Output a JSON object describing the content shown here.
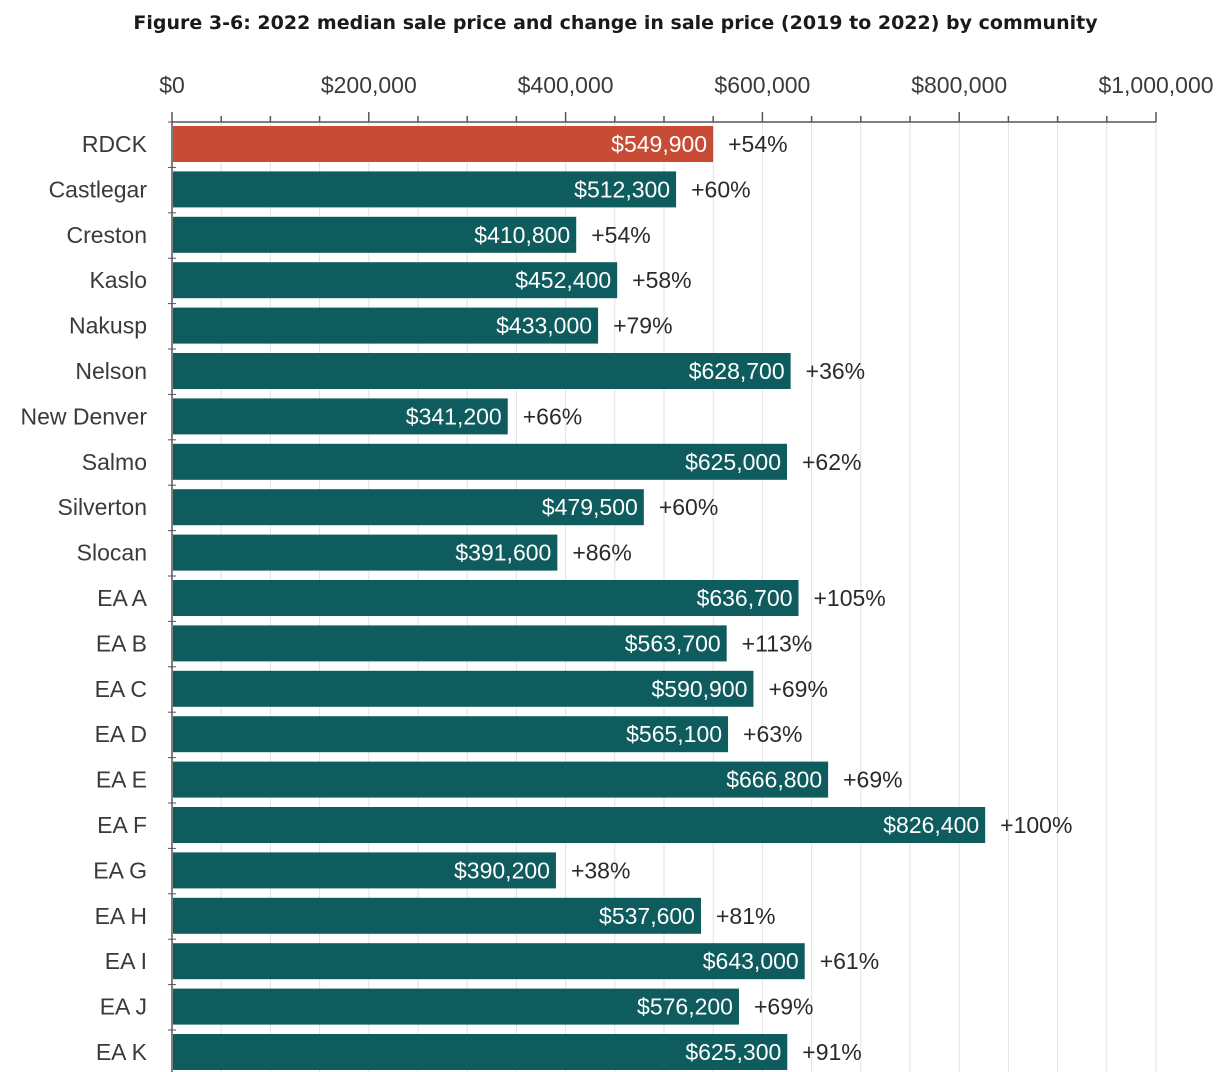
{
  "chart_data": {
    "type": "bar",
    "orientation": "horizontal",
    "title": "Figure 3-6: 2022 median sale price and change in sale price (2019 to 2022) by community",
    "xlim": [
      0,
      1000000
    ],
    "x_ticks": [
      "$0",
      "$200,000",
      "$400,000",
      "$600,000",
      "$800,000",
      "$1,000,000"
    ],
    "x_tick_values": [
      0,
      200000,
      400000,
      600000,
      800000,
      1000000
    ],
    "x_axis_position": "top",
    "grid": true,
    "categories": [
      "RDCK",
      "Castlegar",
      "Creston",
      "Kaslo",
      "Nakusp",
      "Nelson",
      "New Denver",
      "Salmo",
      "Silverton",
      "Slocan",
      "EA A",
      "EA B",
      "EA C",
      "EA D",
      "EA E",
      "EA F",
      "EA G",
      "EA H",
      "EA I",
      "EA J",
      "EA K"
    ],
    "values": [
      549900,
      512300,
      410800,
      452400,
      433000,
      628700,
      341200,
      625000,
      479500,
      391600,
      636700,
      563700,
      590900,
      565100,
      666800,
      826400,
      390200,
      537600,
      643000,
      576200,
      625300
    ],
    "value_labels": [
      "$549,900",
      "$512,300",
      "$410,800",
      "$452,400",
      "$433,000",
      "$628,700",
      "$341,200",
      "$625,000",
      "$479,500",
      "$391,600",
      "$636,700",
      "$563,700",
      "$590,900",
      "$565,100",
      "$666,800",
      "$826,400",
      "$390,200",
      "$537,600",
      "$643,000",
      "$576,200",
      "$625,300"
    ],
    "change_labels": [
      "+54%",
      "+60%",
      "+54%",
      "+58%",
      "+79%",
      "+36%",
      "+66%",
      "+62%",
      "+60%",
      "+86%",
      "+105%",
      "+113%",
      "+69%",
      "+63%",
      "+69%",
      "+100%",
      "+38%",
      "+81%",
      "+61%",
      "+69%",
      "+91%"
    ],
    "highlight_index": 0,
    "colors": {
      "highlight": "#c84b35",
      "bar": "#0f5c5e",
      "grid": "#e2e2e2",
      "axis": "#555555"
    }
  }
}
